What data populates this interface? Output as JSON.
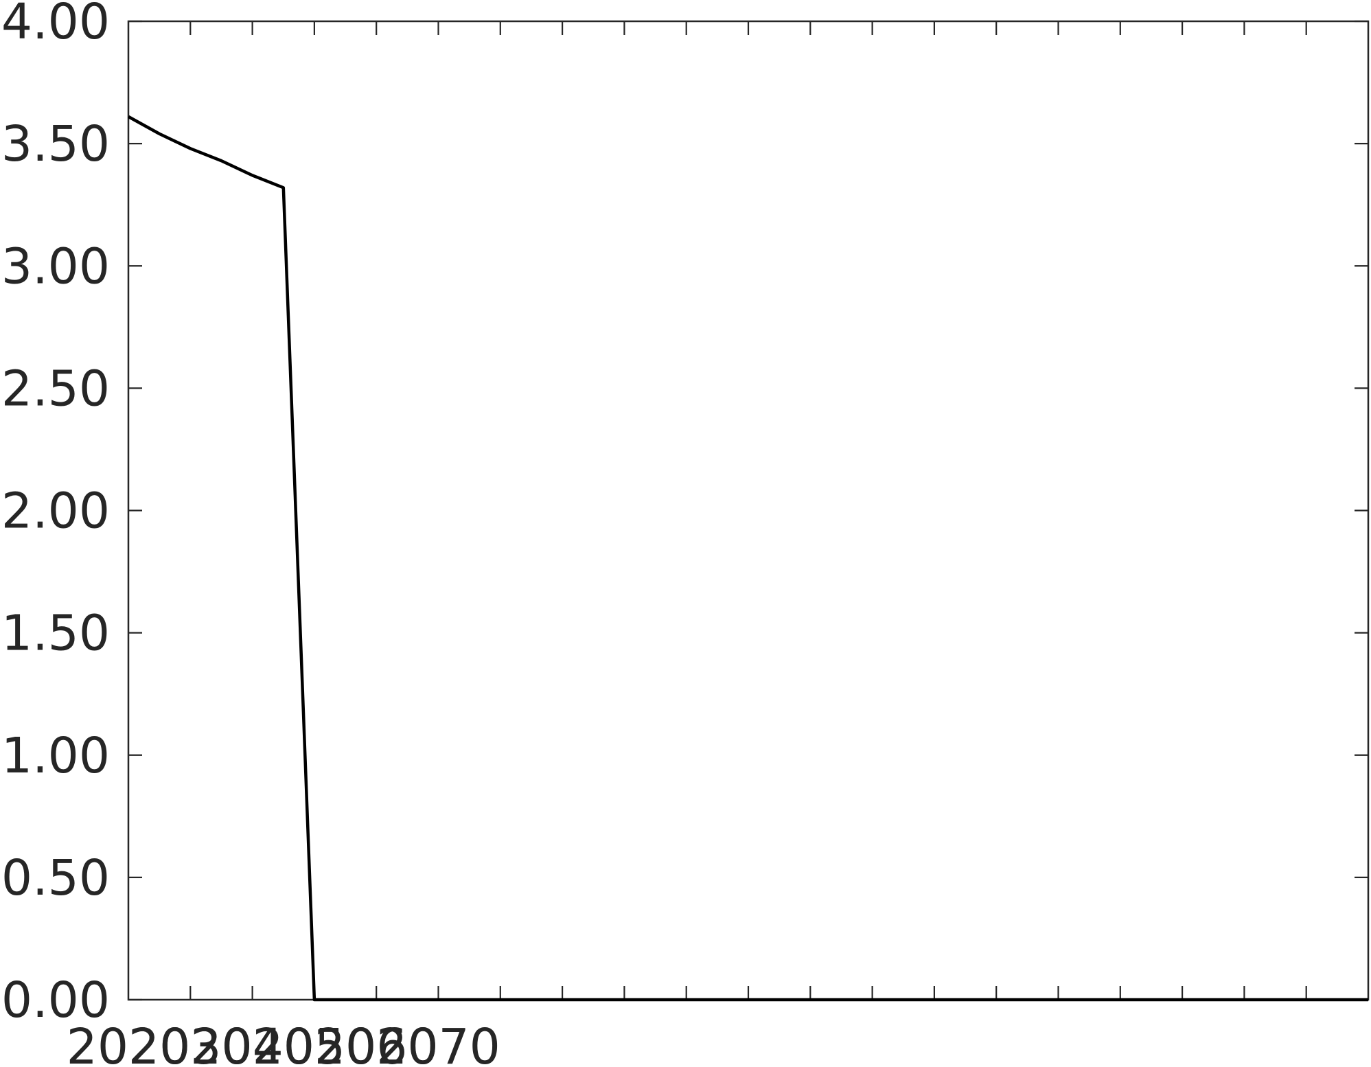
{
  "chart_data": {
    "type": "line",
    "title": "",
    "xlabel": "",
    "ylabel": "",
    "xlim": [
      2020,
      2220
    ],
    "ylim": [
      0,
      4
    ],
    "grid": false,
    "legend": "none",
    "y_ticks": [
      0,
      0.5,
      1,
      1.5,
      2,
      2.5,
      3,
      3.5,
      4
    ],
    "y_tick_labels": [
      "0.00",
      "0.50",
      "1.00",
      "1.50",
      "2.00",
      "2.50",
      "3.00",
      "3.50",
      "4.00"
    ],
    "x_ticks": [
      2020,
      2030,
      2040,
      2050,
      2060,
      2070
    ],
    "x_tick_labels": [
      "2020",
      "2030",
      "2040",
      "2050",
      "2060",
      "2070"
    ],
    "x_minor_ticks": [
      2030,
      2040,
      2050,
      2060,
      2070,
      2080,
      2090,
      2100,
      2110,
      2120,
      2130,
      2140,
      2150,
      2160,
      2170,
      2180,
      2190,
      2200,
      2210
    ],
    "series": [
      {
        "color": "#000000",
        "x": [
          2020,
          2025,
          2030,
          2035,
          2040,
          2045,
          2050,
          2220
        ],
        "y": [
          3.61,
          3.54,
          3.48,
          3.43,
          3.37,
          3.32,
          0.0,
          0.0
        ]
      }
    ]
  }
}
